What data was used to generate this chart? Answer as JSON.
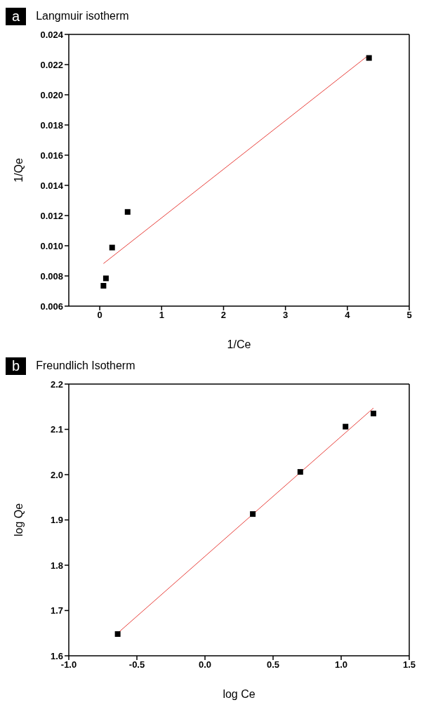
{
  "chart_data": [
    {
      "type": "scatter",
      "title": "Langmuir isotherm",
      "annotations": [
        "a"
      ],
      "xlabel": "1/Ce",
      "ylabel": "1/Qe",
      "grid": false,
      "xlim": [
        -0.5,
        5
      ],
      "xticks": [
        0,
        1,
        2,
        3,
        4,
        5
      ],
      "ylim": [
        0.006,
        0.024
      ],
      "yticks": [
        0.006,
        0.008,
        {
          "value": 0.01,
          "label": "0.010"
        },
        0.012,
        0.014,
        0.016,
        0.018,
        {
          "value": 0.02,
          "label": "0.020"
        },
        0.022,
        0.024
      ],
      "series": [
        {
          "marker": "square",
          "color": "#000000",
          "x": [
            0.06,
            0.1,
            0.2,
            0.45,
            4.35
          ],
          "values": [
            0.00735,
            0.00784,
            0.00988,
            0.01224,
            0.02244
          ]
        },
        {
          "type": "line",
          "marker": "none",
          "color": "#e8413c",
          "x": [
            0.06,
            4.33
          ],
          "values": [
            0.00882,
            0.02258
          ]
        }
      ]
    },
    {
      "type": "scatter",
      "title": "Freundlich Isotherm",
      "annotations": [
        "b"
      ],
      "xlabel": "log Ce",
      "ylabel": "log Qe",
      "grid": false,
      "xlim": [
        -1,
        1.5
      ],
      "xticks": [
        {
          "value": -1,
          "label": "-1.0"
        },
        -0.5,
        {
          "value": 0,
          "label": "0.0"
        },
        0.5,
        {
          "value": 1,
          "label": "1.0"
        },
        1.5
      ],
      "ylim": [
        1.6,
        2.2
      ],
      "yticks": [
        1.6,
        1.7,
        1.8,
        1.9,
        {
          "value": 2,
          "label": "2.0"
        },
        2.1,
        2.2
      ],
      "series": [
        {
          "marker": "square",
          "color": "#000000",
          "x": [
            -0.641,
            0.351,
            0.7,
            1.032,
            1.237
          ],
          "values": [
            1.648,
            1.913,
            2.006,
            2.106,
            2.135
          ]
        },
        {
          "type": "line",
          "marker": "none",
          "color": "#e8413c",
          "x": [
            -0.641,
            1.237
          ],
          "values": [
            1.65,
            2.147
          ]
        }
      ]
    }
  ]
}
